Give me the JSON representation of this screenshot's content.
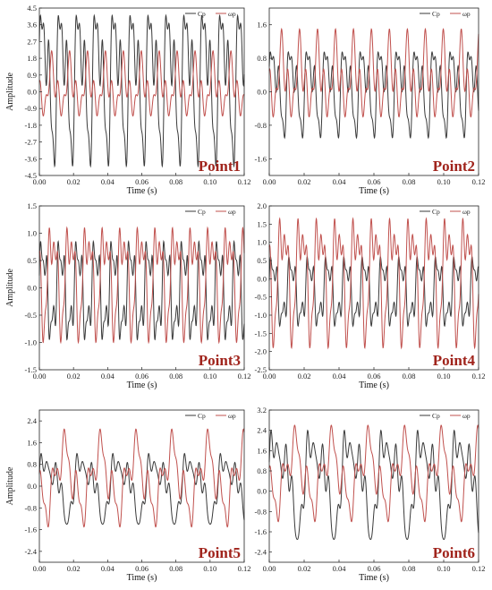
{
  "chart_data": [
    {
      "type": "line",
      "label": "Point1",
      "xlabel": "Time (s)",
      "ylabel": "Amplitude",
      "xlim": [
        0,
        0.12
      ],
      "ylim": [
        -4.5,
        4.5
      ],
      "xticks": [
        "0.00",
        "0.02",
        "0.04",
        "0.06",
        "0.08",
        "0.10",
        "0.12"
      ],
      "yticks": [
        "4.5",
        "3.6",
        "2.7",
        "1.8",
        "0.9",
        "0.0",
        "-0.9",
        "-1.8",
        "-2.7",
        "-3.6",
        "-4.5"
      ],
      "legend": [
        "Cp",
        "ωp"
      ],
      "series": [
        {
          "name": "Cp",
          "period": 0.0105,
          "max": 4.1,
          "min": -4.0
        },
        {
          "name": "ωp",
          "period": 0.0105,
          "max": 2.2,
          "min": -1.3
        }
      ]
    },
    {
      "type": "line",
      "label": "Point2",
      "xlabel": "Time (s)",
      "ylabel": "",
      "xlim": [
        0,
        0.12
      ],
      "ylim": [
        -2.0,
        2.0
      ],
      "xticks": [
        "0.00",
        "0.02",
        "0.04",
        "0.06",
        "0.08",
        "0.10",
        "0.12"
      ],
      "yticks": [
        "1.6",
        "0.8",
        "0.0",
        "-0.8",
        "-1.6"
      ],
      "legend": [
        "Cp",
        "ωp"
      ],
      "series": [
        {
          "name": "Cp",
          "period": 0.0103,
          "max": 0.95,
          "min": -1.1
        },
        {
          "name": "ωp",
          "period": 0.0103,
          "max": 1.5,
          "min": -0.6
        }
      ]
    },
    {
      "type": "line",
      "label": "Point3",
      "xlabel": "Time (s)",
      "ylabel": "Amplitude",
      "xlim": [
        0,
        0.12
      ],
      "ylim": [
        -1.5,
        1.5
      ],
      "xticks": [
        "0.00",
        "0.02",
        "0.04",
        "0.06",
        "0.08",
        "0.10",
        "0.12"
      ],
      "yticks": [
        "1.5",
        "1.0",
        "0.5",
        "0.0",
        "-0.5",
        "-1.0",
        "-1.5"
      ],
      "legend": [
        "Cp",
        "ωp"
      ],
      "series": [
        {
          "name": "Cp",
          "period": 0.0103,
          "max": 0.85,
          "min": -0.95
        },
        {
          "name": "ωp",
          "period": 0.0103,
          "max": 1.1,
          "min": -1.0
        }
      ]
    },
    {
      "type": "line",
      "label": "Point4",
      "xlabel": "Time (s)",
      "ylabel": "",
      "xlim": [
        0,
        0.12
      ],
      "ylim": [
        -2.5,
        2.0
      ],
      "xticks": [
        "0.00",
        "0.02",
        "0.04",
        "0.06",
        "0.08",
        "0.10",
        "0.12"
      ],
      "yticks": [
        "2.0",
        "1.5",
        "1.0",
        "0.5",
        "0.0",
        "-0.5",
        "-1.0",
        "-1.5",
        "-2.0",
        "-2.5"
      ],
      "legend": [
        "Cp",
        "ωp"
      ],
      "series": [
        {
          "name": "Cp",
          "period": 0.0105,
          "max": 0.6,
          "min": -1.3
        },
        {
          "name": "ωp",
          "period": 0.0105,
          "max": 1.65,
          "min": -1.9
        }
      ]
    },
    {
      "type": "line",
      "label": "Point5",
      "xlabel": "Time (s)",
      "ylabel": "Amplitude",
      "xlim": [
        0,
        0.12
      ],
      "ylim": [
        -2.8,
        2.8
      ],
      "xticks": [
        "0.00",
        "0.02",
        "0.04",
        "0.06",
        "0.08",
        "0.10",
        "0.12"
      ],
      "yticks": [
        "2.4",
        "1.6",
        "0.8",
        "0.0",
        "-0.8",
        "-1.6",
        "-2.4"
      ],
      "legend": [
        "Cp",
        "ωp"
      ],
      "series": [
        {
          "name": "Cp",
          "period": 0.021,
          "max": 1.2,
          "min": -1.4
        },
        {
          "name": "ωp",
          "period": 0.021,
          "max": 2.1,
          "min": -1.5
        }
      ]
    },
    {
      "type": "line",
      "label": "Point6",
      "xlabel": "Time (s)",
      "ylabel": "",
      "xlim": [
        0,
        0.12
      ],
      "ylim": [
        -2.8,
        3.2
      ],
      "xticks": [
        "0.00",
        "0.02",
        "0.04",
        "0.06",
        "0.08",
        "0.10",
        "0.12"
      ],
      "yticks": [
        "3.2",
        "2.4",
        "1.6",
        "0.8",
        "0.0",
        "-0.8",
        "-1.6",
        "-2.4"
      ],
      "legend": [
        "Cp",
        "ωp"
      ],
      "series": [
        {
          "name": "Cp",
          "period": 0.021,
          "max": 2.4,
          "min": -1.9
        },
        {
          "name": "ωp",
          "period": 0.021,
          "max": 2.6,
          "min": -1.2
        }
      ]
    }
  ],
  "colors": {
    "Cp": "#3a3a3a",
    "ωp": "#c0504d"
  }
}
